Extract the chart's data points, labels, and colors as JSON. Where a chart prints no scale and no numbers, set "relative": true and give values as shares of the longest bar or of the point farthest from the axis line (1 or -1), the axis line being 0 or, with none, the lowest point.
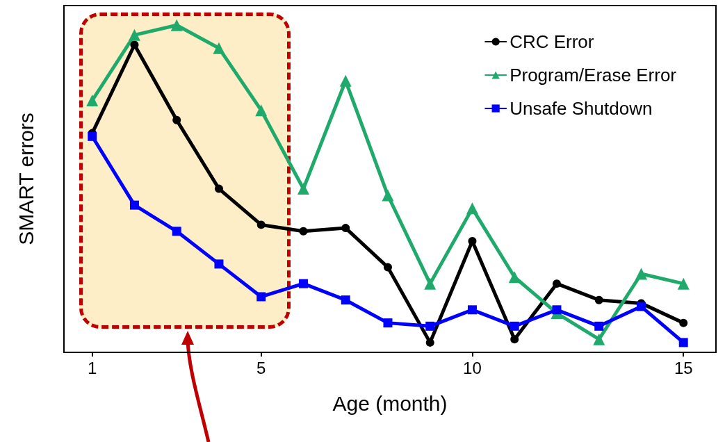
{
  "chart_data": {
    "type": "line",
    "xlabel": "Age (month)",
    "ylabel": "SMART errors",
    "relative": true,
    "x": [
      1,
      2,
      3,
      4,
      5,
      6,
      7,
      8,
      9,
      10,
      11,
      12,
      13,
      14,
      15
    ],
    "xlim": [
      0.33,
      15.77
    ],
    "xticks": [
      1,
      5,
      10,
      15
    ],
    "grid": false,
    "legend": "top right",
    "line_style": "solid",
    "bands": [
      {
        "axis": "x",
        "from": 0.7,
        "to": 5.7,
        "color": "#facd5f"
      }
    ],
    "series": [
      {
        "name": "CRC Error",
        "color": "#000000",
        "marker": "circle",
        "values": [
          0.67,
          0.94,
          0.71,
          0.5,
          0.39,
          0.37,
          0.38,
          0.26,
          0.03,
          0.34,
          0.04,
          0.21,
          0.16,
          0.15,
          0.09
        ]
      },
      {
        "name": "Program/Erase Error",
        "color": "#1faa6b",
        "marker": "triangle",
        "values": [
          0.77,
          0.97,
          1,
          0.93,
          0.74,
          0.5,
          0.83,
          0.48,
          0.21,
          0.44,
          0.23,
          0.12,
          0.04,
          0.24,
          0.21
        ]
      },
      {
        "name": "Unsafe Shutdown",
        "color": "#0000ff",
        "marker": "square",
        "values": [
          0.66,
          0.45,
          0.37,
          0.27,
          0.17,
          0.21,
          0.16,
          0.09,
          0.08,
          0.13,
          0.08,
          0.13,
          0.08,
          0.14,
          0.03
        ]
      }
    ]
  }
}
